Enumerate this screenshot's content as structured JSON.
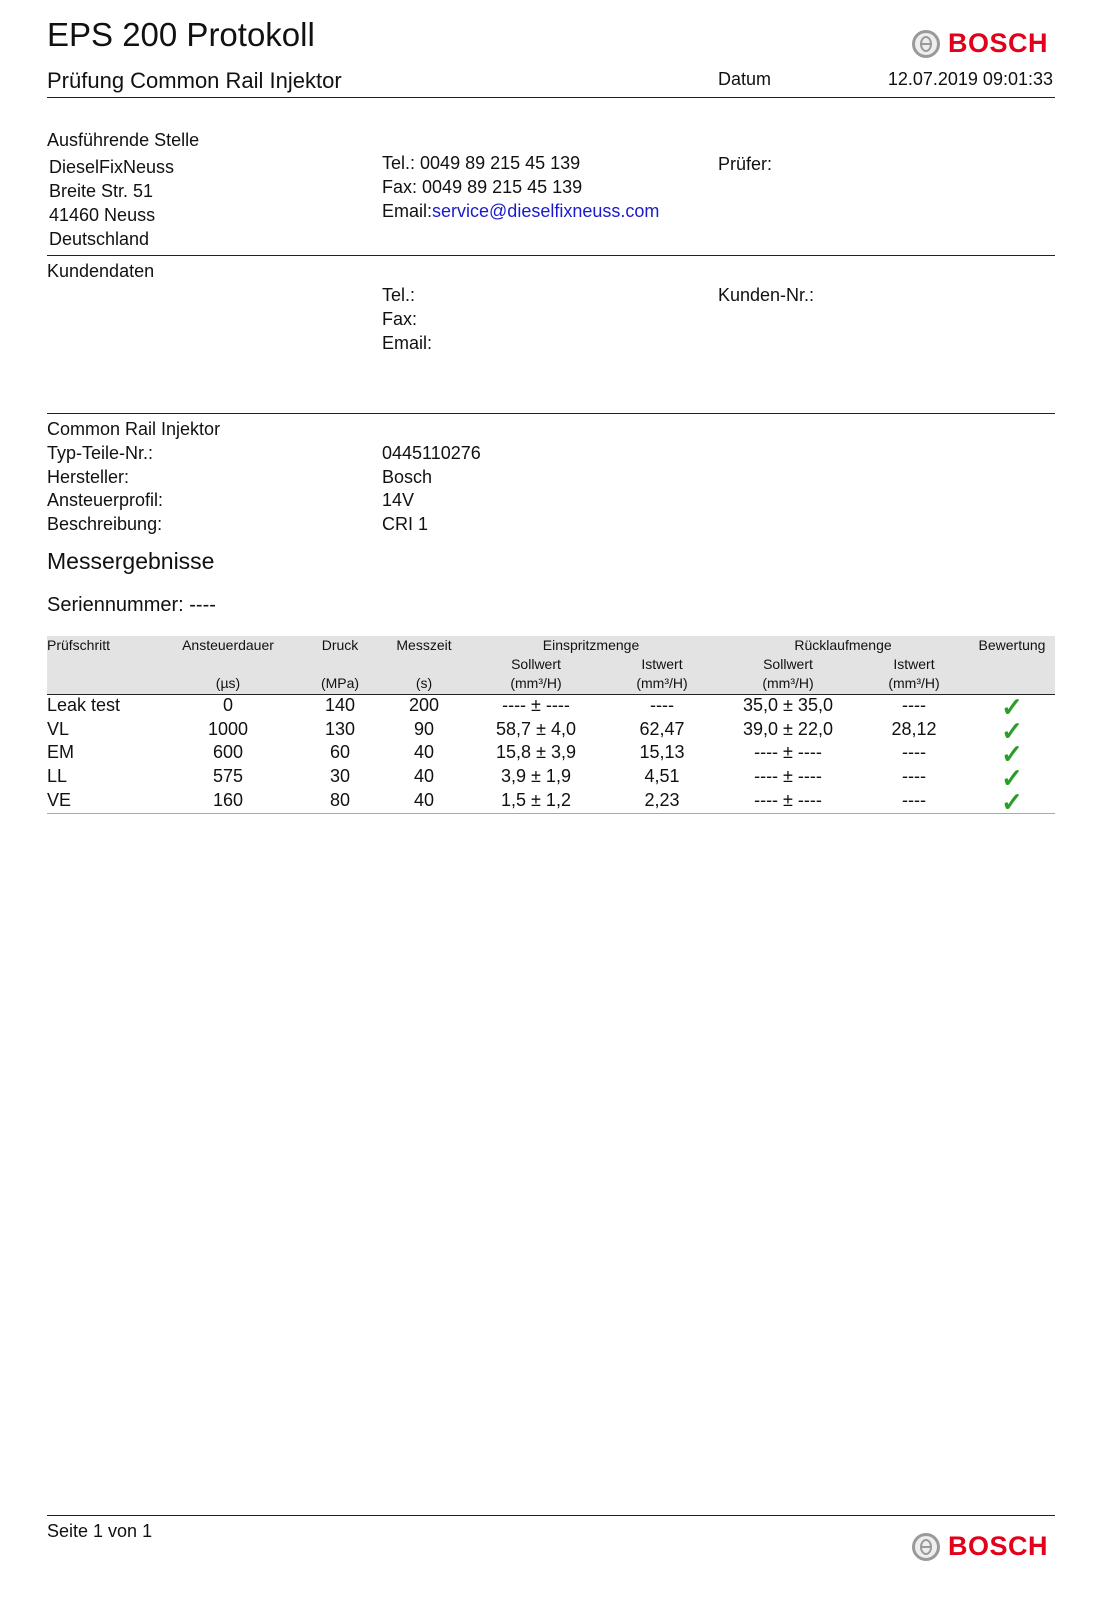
{
  "header": {
    "title": "EPS 200 Protokoll",
    "subtitle": "Prüfung Common Rail Injektor",
    "date_label": "Datum",
    "date_value": "12.07.2019 09:01:33",
    "logo_text": "BOSCH"
  },
  "stelle": {
    "heading": "Ausführende Stelle",
    "address": [
      "DieselFixNeuss",
      "Breite Str. 51",
      "41460 Neuss",
      "Deutschland"
    ],
    "tel_label": "Tel.:",
    "tel": "0049 89 215 45 139",
    "fax_label": "Fax:",
    "fax": "0049 89 215 45 139",
    "email_label": "Email:",
    "email": "service@dieselfixneuss.com",
    "pruefer_label": "Prüfer:"
  },
  "kunde": {
    "heading": "Kundendaten",
    "tel_label": "Tel.:",
    "fax_label": "Fax:",
    "email_label": "Email:",
    "kunden_nr_label": "Kunden-Nr.:"
  },
  "injektor": {
    "heading": "Common Rail Injektor",
    "fields": [
      {
        "label": "Typ-Teile-Nr.:",
        "value": "0445110276"
      },
      {
        "label": "Hersteller:",
        "value": "Bosch"
      },
      {
        "label": "Ansteuerprofil:",
        "value": "14V"
      },
      {
        "label": "Beschreibung:",
        "value": "CRI 1"
      }
    ]
  },
  "results": {
    "heading": "Messergebnisse",
    "serial": "Seriennummer: ----",
    "columns": {
      "pruefschritt": "Prüfschritt",
      "ansteuerdauer": "Ansteuerdauer",
      "ansteuerdauer_unit": "(µs)",
      "druck": "Druck",
      "druck_unit": "(MPa)",
      "messzeit": "Messzeit",
      "messzeit_unit": "(s)",
      "einspritz": "Einspritzmenge",
      "ruecklauf": "Rücklaufmenge",
      "sollwert": "Sollwert",
      "istwert": "Istwert",
      "unit_mm3": "(mm³/H)",
      "bewertung": "Bewertung"
    },
    "rows": [
      [
        "Leak test",
        "0",
        "140",
        "200",
        "---- ± ----",
        "----",
        "35,0 ± 35,0",
        "----",
        "ok"
      ],
      [
        "VL",
        "1000",
        "130",
        "90",
        "58,7 ± 4,0",
        "62,47",
        "39,0 ± 22,0",
        "28,12",
        "ok"
      ],
      [
        "EM",
        "600",
        "60",
        "40",
        "15,8 ± 3,9",
        "15,13",
        "---- ± ----",
        "----",
        "ok"
      ],
      [
        "LL",
        "575",
        "30",
        "40",
        "3,9 ± 1,9",
        "4,51",
        "---- ± ----",
        "----",
        "ok"
      ],
      [
        "VE",
        "160",
        "80",
        "40",
        "1,5 ± 1,2",
        "2,23",
        "---- ± ----",
        "----",
        "ok"
      ]
    ],
    "check_color": "#2a9d2a"
  },
  "footer": {
    "page": "Seite 1 von 1",
    "logo_text": "BOSCH"
  }
}
